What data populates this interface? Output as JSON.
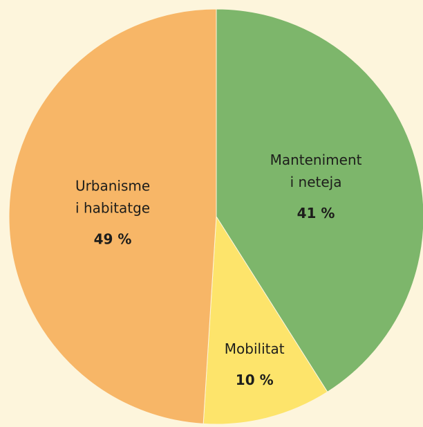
{
  "chart_data": {
    "type": "pie",
    "categories": [
      [
        "Manteniment",
        "i neteja"
      ],
      [
        "Mobilitat"
      ],
      [
        "Urbanisme",
        "i habitatge"
      ]
    ],
    "values": [
      41,
      10,
      49
    ],
    "value_labels": [
      "41 %",
      "10 %",
      "49 %"
    ],
    "colors": [
      "#7db66b",
      "#fde46b",
      "#f7b667"
    ]
  }
}
